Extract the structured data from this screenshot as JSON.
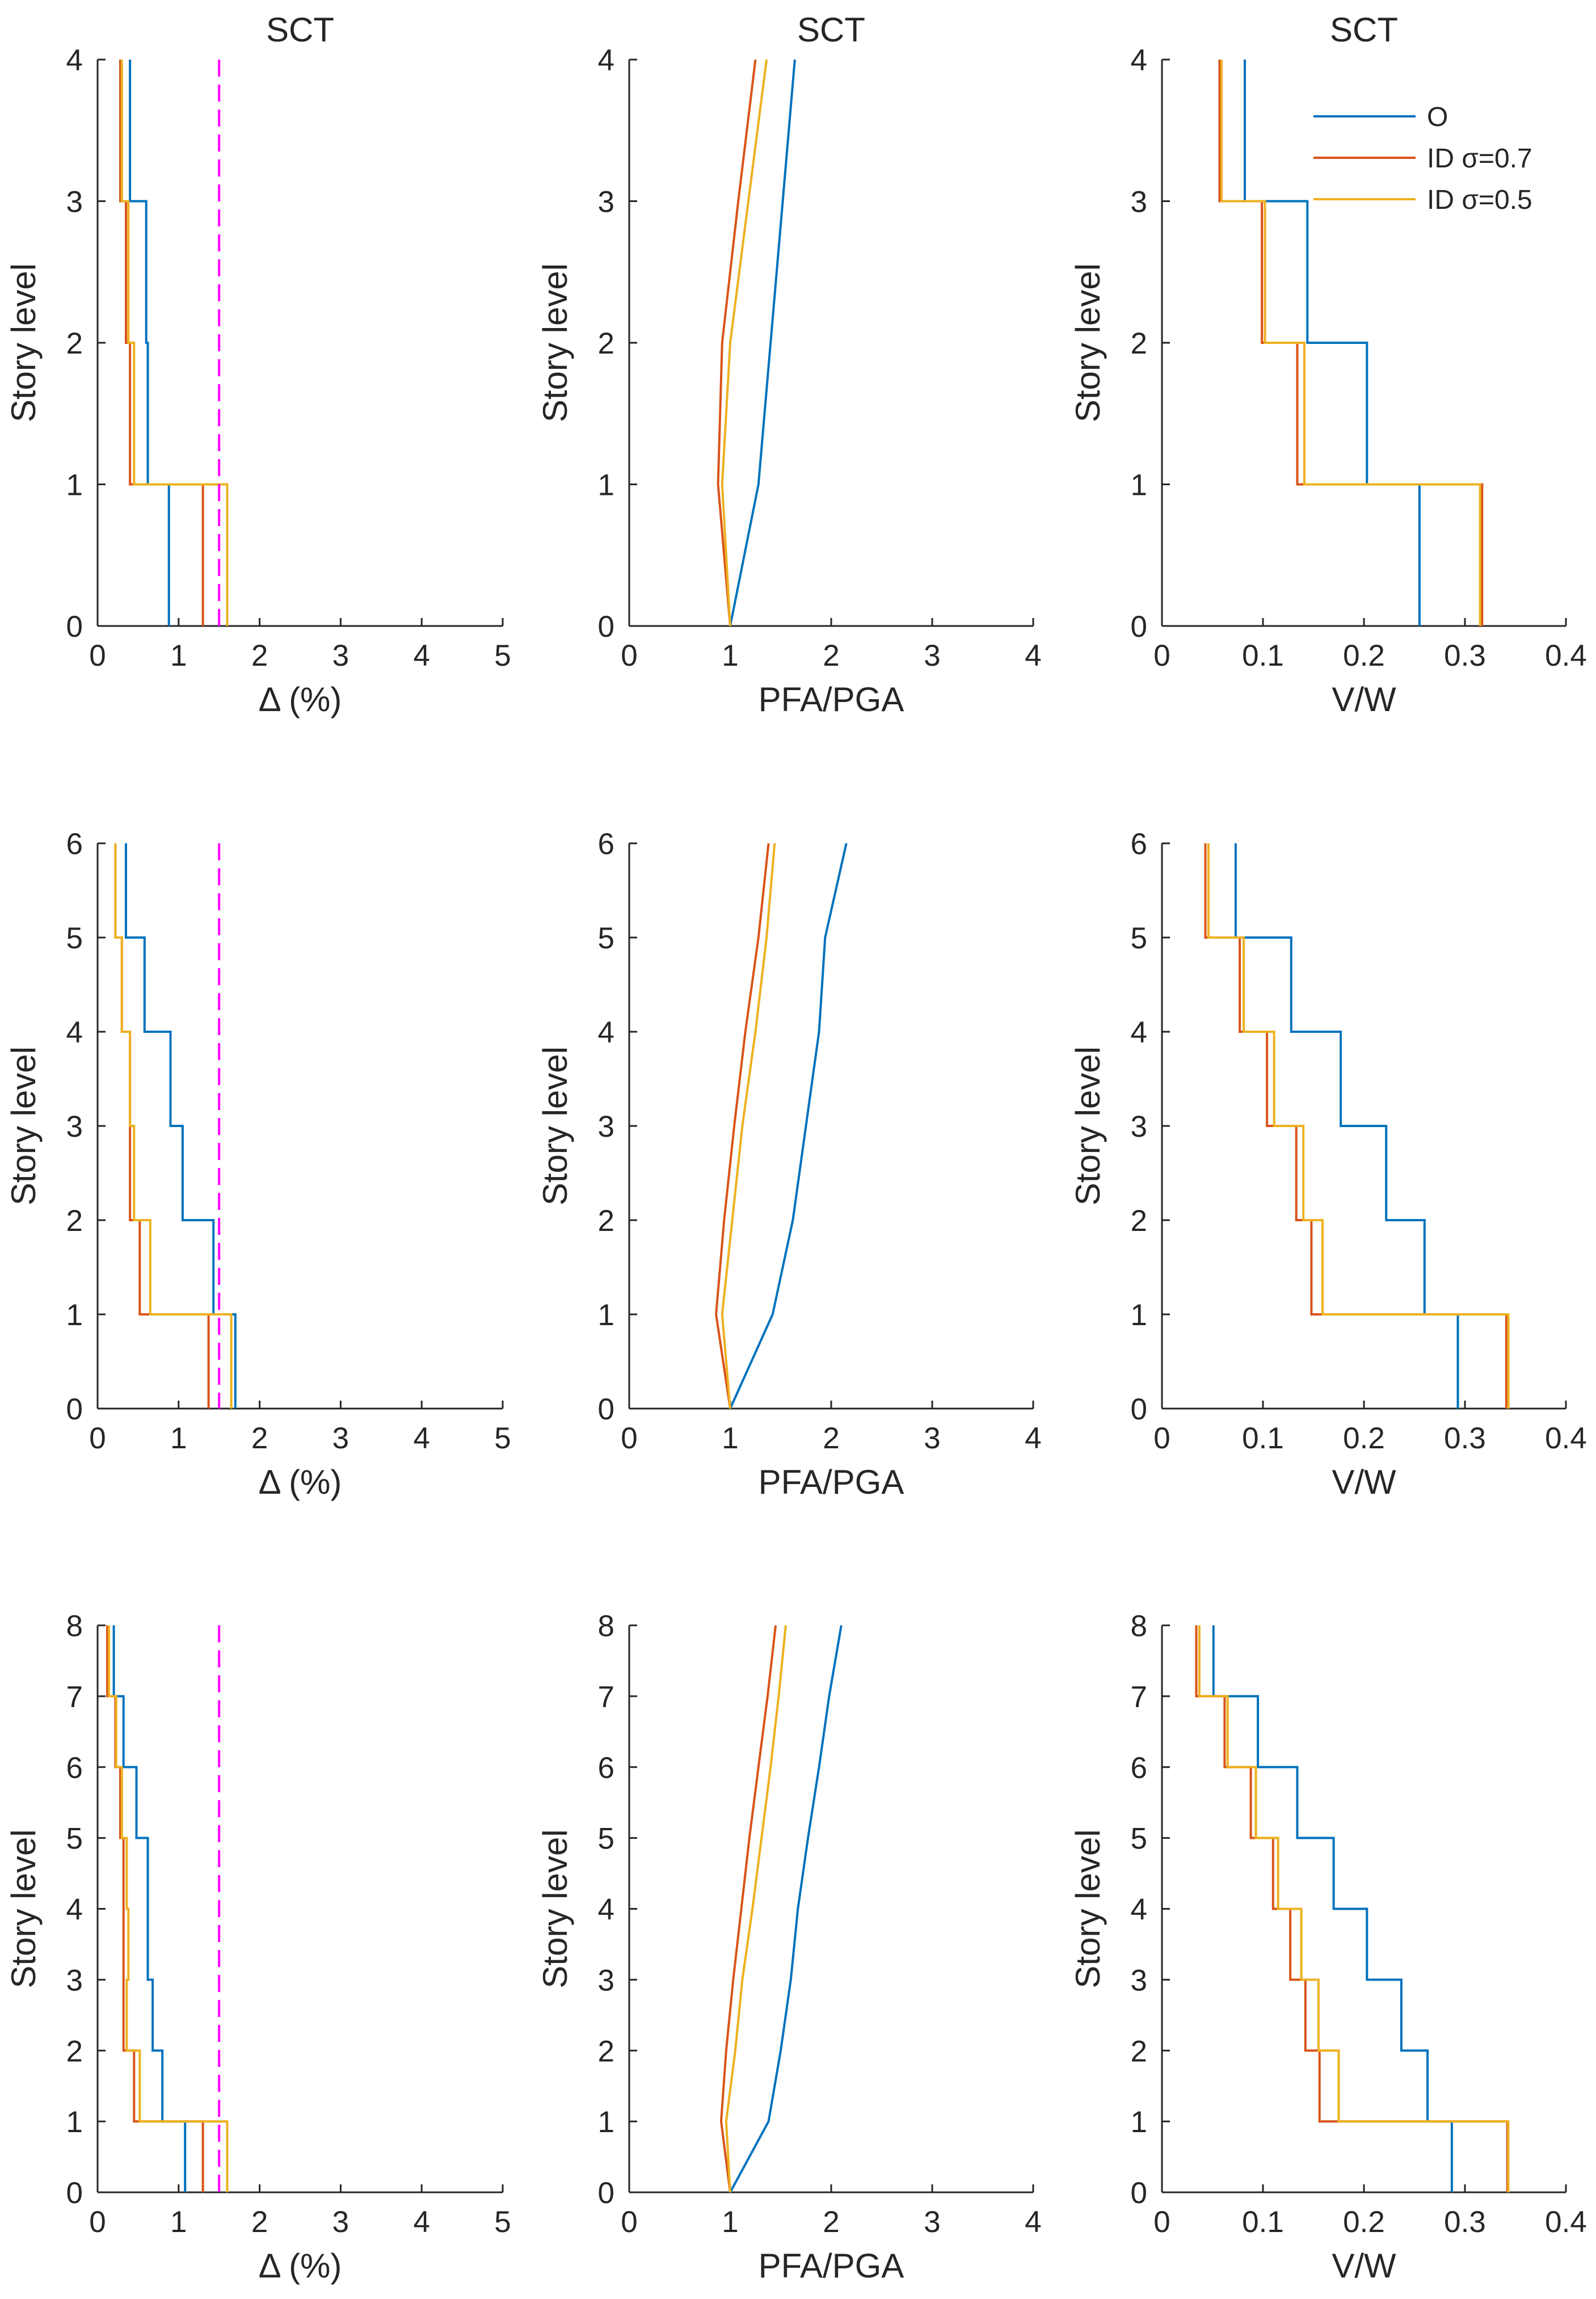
{
  "chart_data": [
    {
      "type": "line",
      "row": 1,
      "col": 1,
      "title": "SCT",
      "xlabel": "Δ (%)",
      "ylabel": "Story level",
      "xlim": [
        0,
        5
      ],
      "ylim": [
        0,
        4
      ],
      "xticks": [
        "0",
        "1",
        "2",
        "3",
        "4",
        "5"
      ],
      "yticks": [
        "0",
        "1",
        "2",
        "3",
        "4"
      ],
      "step": true,
      "ref_x": 1.5,
      "ref_color": "#ff00ff",
      "series": [
        {
          "name": "O",
          "color": "#0072bd",
          "values": [
            0.88,
            0.62,
            0.6,
            0.4
          ]
        },
        {
          "name": "ID σ=0.7",
          "color": "#d95319",
          "values": [
            1.3,
            0.4,
            0.35,
            0.28
          ]
        },
        {
          "name": "ID σ=0.5",
          "color": "#edb120",
          "values": [
            1.6,
            0.45,
            0.38,
            0.3
          ]
        }
      ]
    },
    {
      "type": "line",
      "row": 1,
      "col": 2,
      "title": "SCT",
      "xlabel": "PFA/PGA",
      "ylabel": "Story level",
      "xlim": [
        0,
        4
      ],
      "ylim": [
        0,
        4
      ],
      "xticks": [
        "0",
        "1",
        "2",
        "3",
        "4"
      ],
      "yticks": [
        "0",
        "1",
        "2",
        "3",
        "4"
      ],
      "step": false,
      "series": [
        {
          "name": "O",
          "color": "#0072bd",
          "values": [
            1.0,
            1.28,
            1.4,
            1.52,
            1.64
          ]
        },
        {
          "name": "ID σ=0.7",
          "color": "#d95319",
          "values": [
            1.0,
            0.88,
            0.92,
            1.08,
            1.25
          ]
        },
        {
          "name": "ID σ=0.5",
          "color": "#edb120",
          "values": [
            1.0,
            0.92,
            1.0,
            1.18,
            1.36
          ]
        }
      ]
    },
    {
      "type": "line",
      "row": 1,
      "col": 3,
      "title": "SCT",
      "xlabel": "V/W",
      "ylabel": "Story level",
      "xlim": [
        0,
        0.4
      ],
      "ylim": [
        0,
        4
      ],
      "xticks": [
        "0",
        "0.1",
        "0.2",
        "0.3",
        "0.4"
      ],
      "yticks": [
        "0",
        "1",
        "2",
        "3",
        "4"
      ],
      "step": true,
      "legend": {
        "position": "top-right"
      },
      "series": [
        {
          "name": "O",
          "color": "#0072bd",
          "values": [
            0.255,
            0.203,
            0.144,
            0.082
          ]
        },
        {
          "name": "ID σ=0.7",
          "color": "#d95319",
          "values": [
            0.317,
            0.134,
            0.099,
            0.057
          ]
        },
        {
          "name": "ID σ=0.5",
          "color": "#edb120",
          "values": [
            0.315,
            0.141,
            0.102,
            0.059
          ]
        }
      ]
    },
    {
      "type": "line",
      "row": 2,
      "col": 1,
      "title": "",
      "xlabel": "Δ (%)",
      "ylabel": "Story level",
      "xlim": [
        0,
        5
      ],
      "ylim": [
        0,
        6
      ],
      "xticks": [
        "0",
        "1",
        "2",
        "3",
        "4",
        "5"
      ],
      "yticks": [
        "0",
        "1",
        "2",
        "3",
        "4",
        "5",
        "6"
      ],
      "step": true,
      "ref_x": 1.5,
      "ref_color": "#ff00ff",
      "series": [
        {
          "name": "O",
          "color": "#0072bd",
          "values": [
            1.7,
            1.43,
            1.05,
            0.9,
            0.58,
            0.35
          ]
        },
        {
          "name": "ID σ=0.7",
          "color": "#d95319",
          "values": [
            1.37,
            0.52,
            0.4,
            0.4,
            0.3,
            0.22
          ]
        },
        {
          "name": "ID σ=0.5",
          "color": "#edb120",
          "values": [
            1.65,
            0.65,
            0.45,
            0.4,
            0.3,
            0.22
          ]
        }
      ]
    },
    {
      "type": "line",
      "row": 2,
      "col": 2,
      "title": "",
      "xlabel": "PFA/PGA",
      "ylabel": "Story level",
      "xlim": [
        0,
        4
      ],
      "ylim": [
        0,
        6
      ],
      "xticks": [
        "0",
        "1",
        "2",
        "3",
        "4"
      ],
      "yticks": [
        "0",
        "1",
        "2",
        "3",
        "4",
        "5",
        "6"
      ],
      "step": false,
      "series": [
        {
          "name": "O",
          "color": "#0072bd",
          "values": [
            1.0,
            1.42,
            1.62,
            1.75,
            1.88,
            1.94,
            2.15
          ]
        },
        {
          "name": "ID σ=0.7",
          "color": "#d95319",
          "values": [
            1.0,
            0.86,
            0.94,
            1.04,
            1.15,
            1.28,
            1.38
          ]
        },
        {
          "name": "ID σ=0.5",
          "color": "#edb120",
          "values": [
            1.0,
            0.92,
            1.02,
            1.12,
            1.25,
            1.36,
            1.44
          ]
        }
      ]
    },
    {
      "type": "line",
      "row": 2,
      "col": 3,
      "title": "",
      "xlabel": "V/W",
      "ylabel": "Story level",
      "xlim": [
        0,
        0.4
      ],
      "ylim": [
        0,
        6
      ],
      "xticks": [
        "0",
        "0.1",
        "0.2",
        "0.3",
        "0.4"
      ],
      "yticks": [
        "0",
        "1",
        "2",
        "3",
        "4",
        "5",
        "6"
      ],
      "step": true,
      "series": [
        {
          "name": "O",
          "color": "#0072bd",
          "values": [
            0.293,
            0.26,
            0.222,
            0.177,
            0.128,
            0.073
          ]
        },
        {
          "name": "ID σ=0.7",
          "color": "#d95319",
          "values": [
            0.341,
            0.148,
            0.133,
            0.104,
            0.077,
            0.043
          ]
        },
        {
          "name": "ID σ=0.5",
          "color": "#edb120",
          "values": [
            0.343,
            0.159,
            0.14,
            0.111,
            0.081,
            0.046
          ]
        }
      ]
    },
    {
      "type": "line",
      "row": 3,
      "col": 1,
      "title": "",
      "xlabel": "Δ (%)",
      "ylabel": "Story level",
      "xlim": [
        0,
        5
      ],
      "ylim": [
        0,
        8
      ],
      "xticks": [
        "0",
        "1",
        "2",
        "3",
        "4",
        "5"
      ],
      "yticks": [
        "0",
        "1",
        "2",
        "3",
        "4",
        "5",
        "6",
        "7",
        "8"
      ],
      "step": true,
      "ref_x": 1.5,
      "ref_color": "#ff00ff",
      "series": [
        {
          "name": "O",
          "color": "#0072bd",
          "values": [
            1.08,
            0.8,
            0.68,
            0.62,
            0.62,
            0.48,
            0.32,
            0.2
          ]
        },
        {
          "name": "ID σ=0.7",
          "color": "#d95319",
          "values": [
            1.3,
            0.45,
            0.32,
            0.32,
            0.32,
            0.28,
            0.22,
            0.12
          ]
        },
        {
          "name": "ID σ=0.5",
          "color": "#edb120",
          "values": [
            1.6,
            0.52,
            0.36,
            0.38,
            0.36,
            0.3,
            0.23,
            0.14
          ]
        }
      ]
    },
    {
      "type": "line",
      "row": 3,
      "col": 2,
      "title": "",
      "xlabel": "PFA/PGA",
      "ylabel": "Story level",
      "xlim": [
        0,
        4
      ],
      "ylim": [
        0,
        8
      ],
      "xticks": [
        "0",
        "1",
        "2",
        "3",
        "4"
      ],
      "yticks": [
        "0",
        "1",
        "2",
        "3",
        "4",
        "5",
        "6",
        "7",
        "8"
      ],
      "step": false,
      "series": [
        {
          "name": "O",
          "color": "#0072bd",
          "values": [
            1.0,
            1.38,
            1.5,
            1.6,
            1.67,
            1.77,
            1.88,
            1.98,
            2.1
          ]
        },
        {
          "name": "ID σ=0.7",
          "color": "#d95319",
          "values": [
            1.0,
            0.91,
            0.96,
            1.03,
            1.11,
            1.19,
            1.28,
            1.37,
            1.45
          ]
        },
        {
          "name": "ID σ=0.5",
          "color": "#edb120",
          "values": [
            1.0,
            0.96,
            1.05,
            1.12,
            1.22,
            1.31,
            1.4,
            1.48,
            1.55
          ]
        }
      ]
    },
    {
      "type": "line",
      "row": 3,
      "col": 3,
      "title": "",
      "xlabel": "V/W",
      "ylabel": "Story level",
      "xlim": [
        0,
        0.4
      ],
      "ylim": [
        0,
        8
      ],
      "xticks": [
        "0",
        "0.1",
        "0.2",
        "0.3",
        "0.4"
      ],
      "yticks": [
        "0",
        "1",
        "2",
        "3",
        "4",
        "5",
        "6",
        "7",
        "8"
      ],
      "step": true,
      "series": [
        {
          "name": "O",
          "color": "#0072bd",
          "values": [
            0.287,
            0.263,
            0.237,
            0.203,
            0.17,
            0.134,
            0.095,
            0.051
          ]
        },
        {
          "name": "ID σ=0.7",
          "color": "#d95319",
          "values": [
            0.342,
            0.156,
            0.142,
            0.127,
            0.11,
            0.088,
            0.062,
            0.034
          ]
        },
        {
          "name": "ID σ=0.5",
          "color": "#edb120",
          "values": [
            0.343,
            0.175,
            0.155,
            0.138,
            0.115,
            0.093,
            0.065,
            0.037
          ]
        }
      ]
    }
  ]
}
